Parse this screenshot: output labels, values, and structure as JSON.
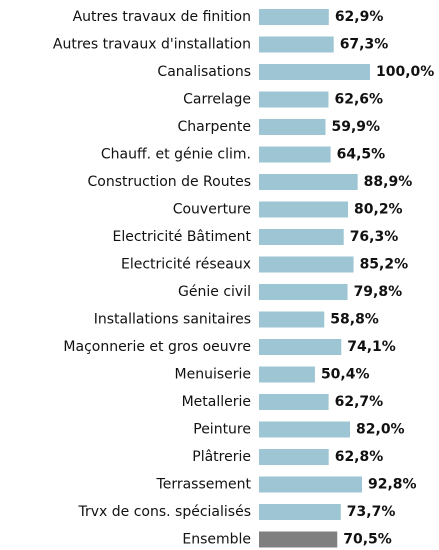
{
  "chart_data": {
    "type": "bar",
    "orientation": "horizontal",
    "categories": [
      "Autres travaux de finition",
      "Autres travaux d'installation",
      "Canalisations",
      "Carrelage",
      "Charpente",
      "Chauff. et génie clim.",
      "Construction de Routes",
      "Couverture",
      "Electricité Bâtiment",
      "Electricité réseaux",
      "Génie civil",
      "Installations sanitaires",
      "Maçonnerie et gros oeuvre",
      "Menuiserie",
      "Metallerie",
      "Peinture",
      "Plâtrerie",
      "Terrassement",
      "Trvx de cons. spécialisés",
      "Ensemble"
    ],
    "values": [
      62.9,
      67.3,
      100.0,
      62.6,
      59.9,
      64.5,
      88.9,
      80.2,
      76.3,
      85.2,
      79.8,
      58.8,
      74.1,
      50.4,
      62.7,
      82.0,
      62.8,
      92.8,
      73.7,
      70.5
    ],
    "value_labels": [
      "62,9%",
      "67,3%",
      "100,0%",
      "62,6%",
      "59,9%",
      "64,5%",
      "88,9%",
      "80,2%",
      "76,3%",
      "85,2%",
      "79,8%",
      "58,8%",
      "74,1%",
      "50,4%",
      "62,7%",
      "82,0%",
      "62,8%",
      "92,8%",
      "73,7%",
      "70,5%"
    ],
    "colors": [
      "#9ec5d3",
      "#9ec5d3",
      "#9ec5d3",
      "#9ec5d3",
      "#9ec5d3",
      "#9ec5d3",
      "#9ec5d3",
      "#9ec5d3",
      "#9ec5d3",
      "#9ec5d3",
      "#9ec5d3",
      "#9ec5d3",
      "#9ec5d3",
      "#9ec5d3",
      "#9ec5d3",
      "#9ec5d3",
      "#9ec5d3",
      "#9ec5d3",
      "#9ec5d3",
      "#7f7f7f"
    ]
  }
}
